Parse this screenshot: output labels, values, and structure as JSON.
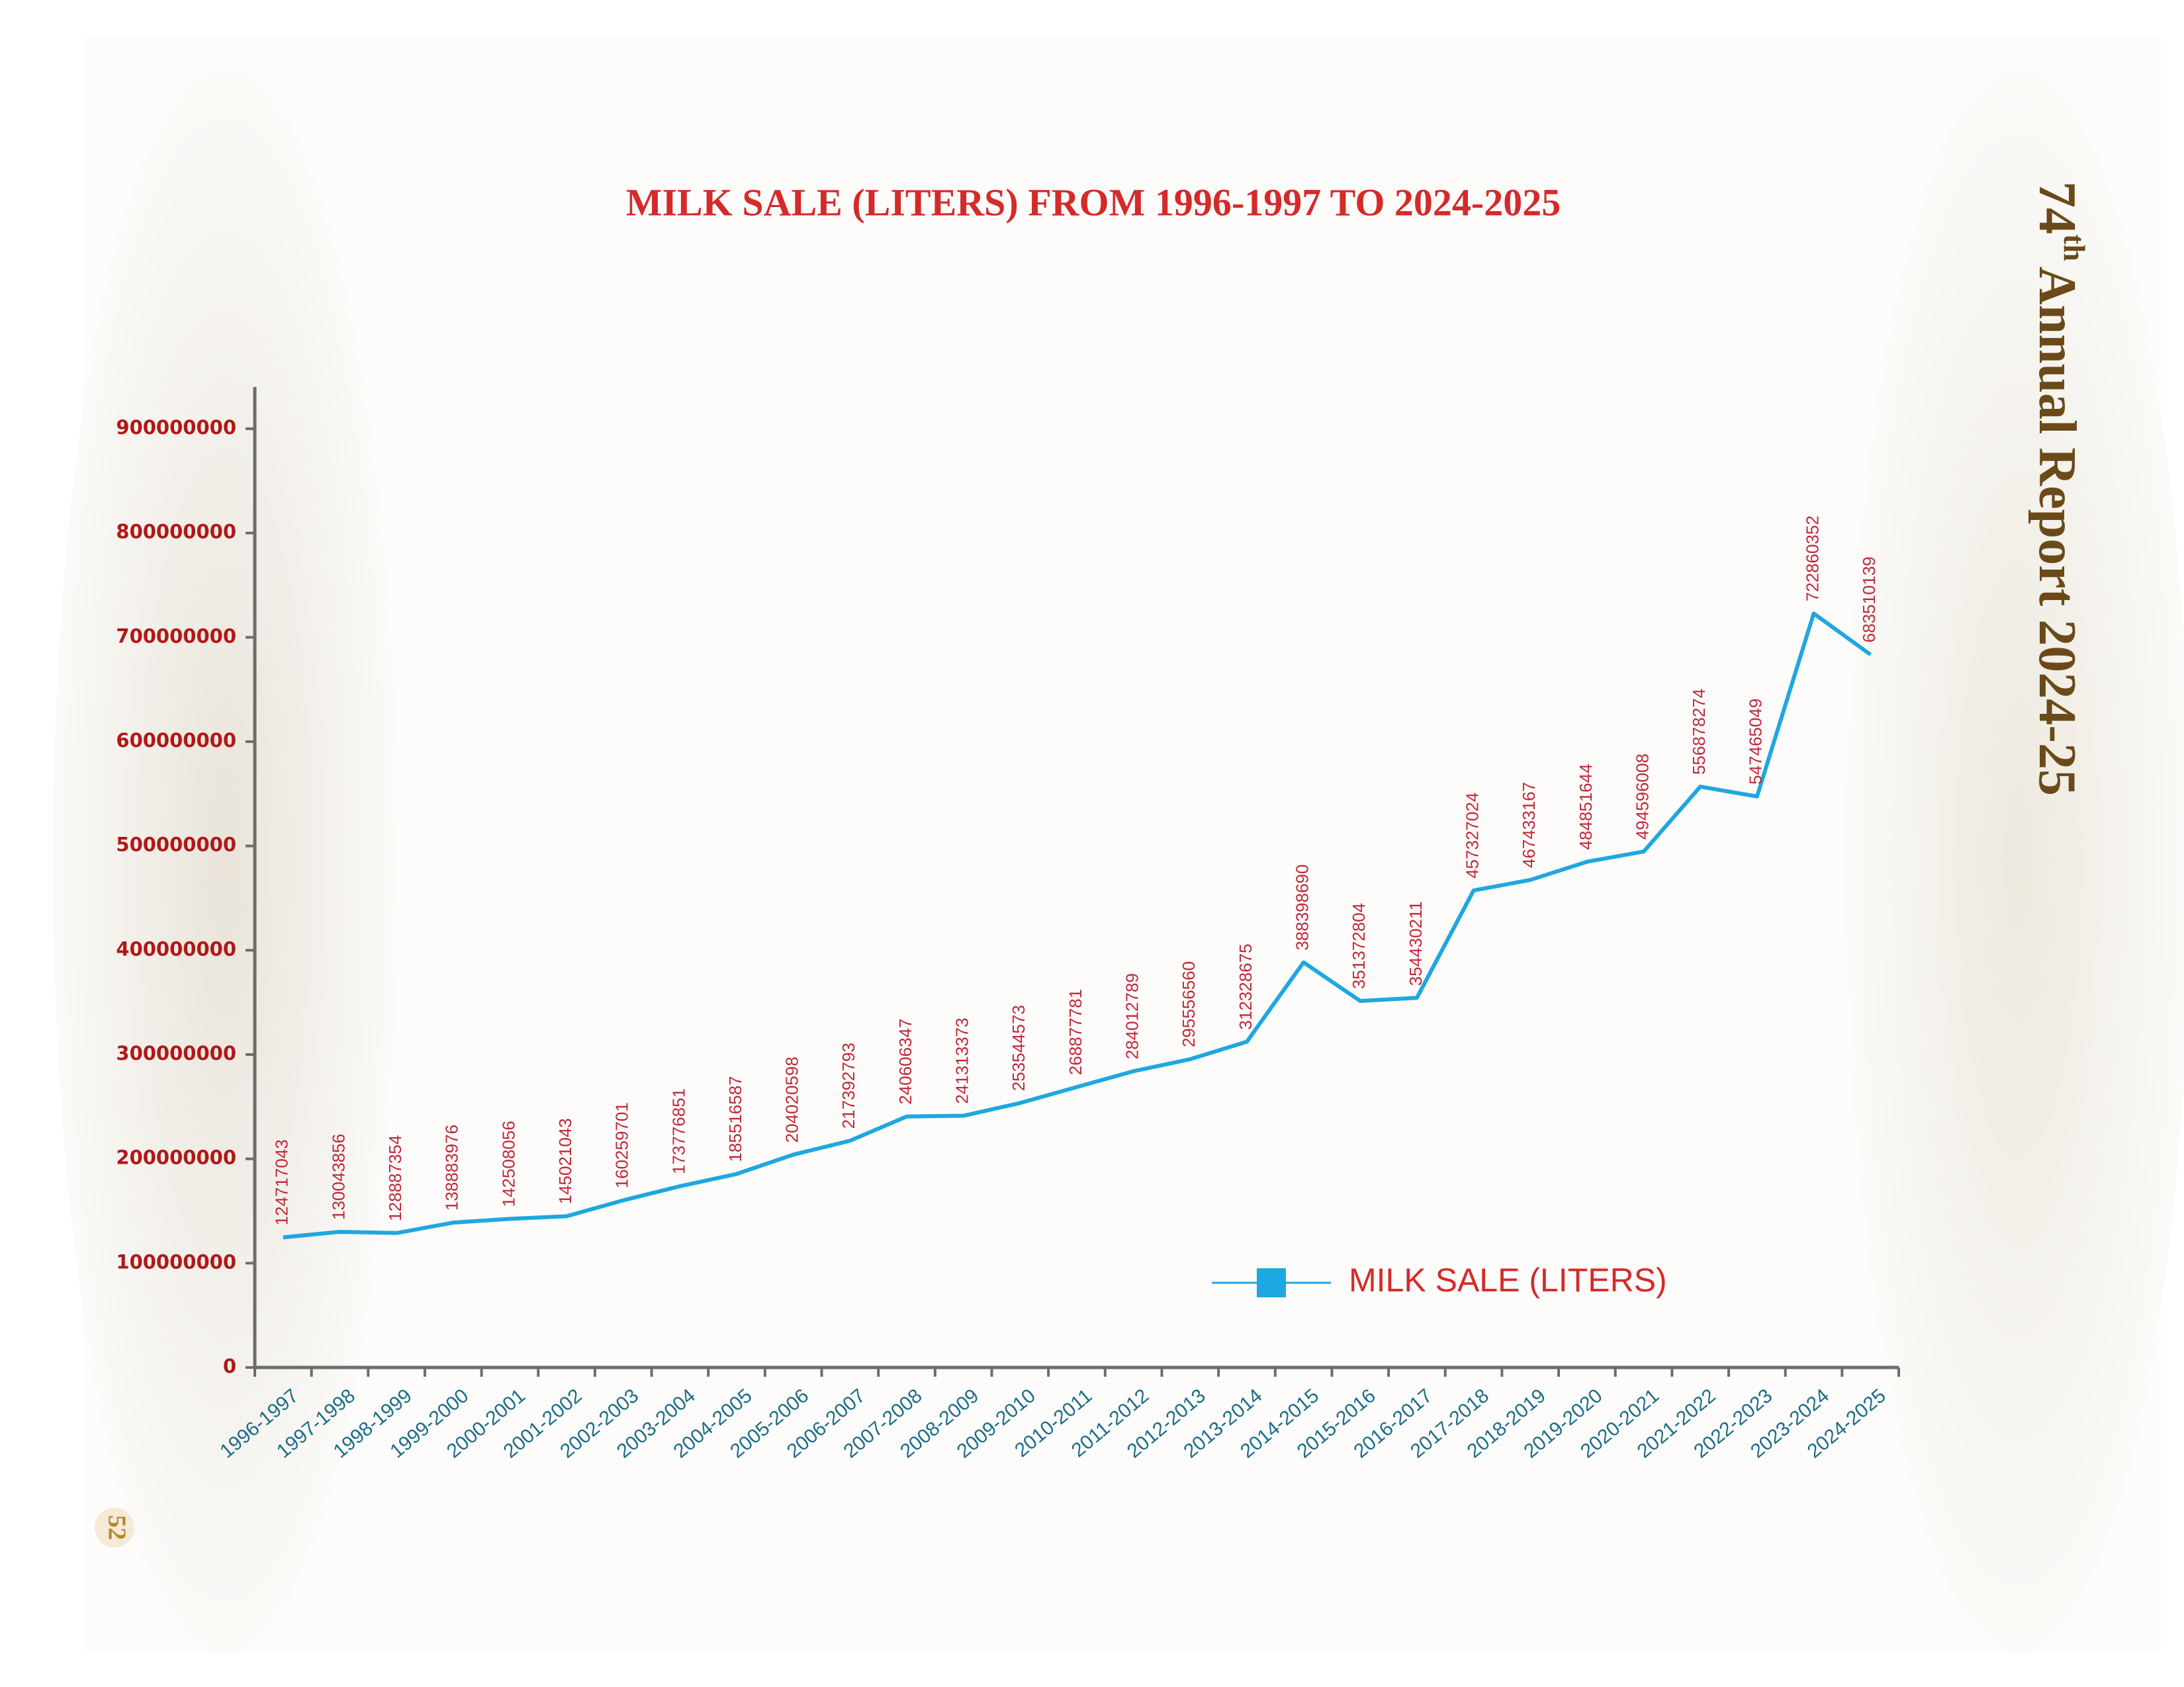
{
  "page": {
    "report_number": "74",
    "report_suffix": "th",
    "report_title": "Annual Report 2024-25",
    "page_number": "52"
  },
  "chart_data": {
    "type": "line",
    "title": "MILK SALE (LITERS) FROM 1996-1997 TO 2024-2025",
    "categories": [
      "1996-1997",
      "1997-1998",
      "1998-1999",
      "1999-2000",
      "2000-2001",
      "2001-2002",
      "2002-2003",
      "2003-2004",
      "2004-2005",
      "2005-2006",
      "2006-2007",
      "2007-2008",
      "2008-2009",
      "2009-2010",
      "2010-2011",
      "2011-2012",
      "2012-2013",
      "2013-2014",
      "2014-2015",
      "2015-2016",
      "2016-2017",
      "2017-2018",
      "2018-2019",
      "2019-2020",
      "2020-2021",
      "2021-2022",
      "2022-2023",
      "2023-2024",
      "2024-2025"
    ],
    "series": [
      {
        "name": "MILK SALE (LITERS)",
        "color": "#1fa7e0",
        "values": [
          124717043,
          130043856,
          128887354,
          138883976,
          142508056,
          145021043,
          160259701,
          173776851,
          185516587,
          204020598,
          217392793,
          240606347,
          241313373,
          253544573,
          268877781,
          284012789,
          295556560,
          312328675,
          388398690,
          351372804,
          354430211,
          457327024,
          467433167,
          484851644,
          494596008,
          556878274,
          547465049,
          722860352,
          683510139
        ]
      }
    ],
    "ylim": [
      0,
      940000000
    ],
    "yticks": [
      0,
      100000000,
      200000000,
      300000000,
      400000000,
      500000000,
      600000000,
      700000000,
      800000000,
      900000000
    ],
    "grid": false,
    "legend": "bottom-right",
    "data_labels": true
  }
}
